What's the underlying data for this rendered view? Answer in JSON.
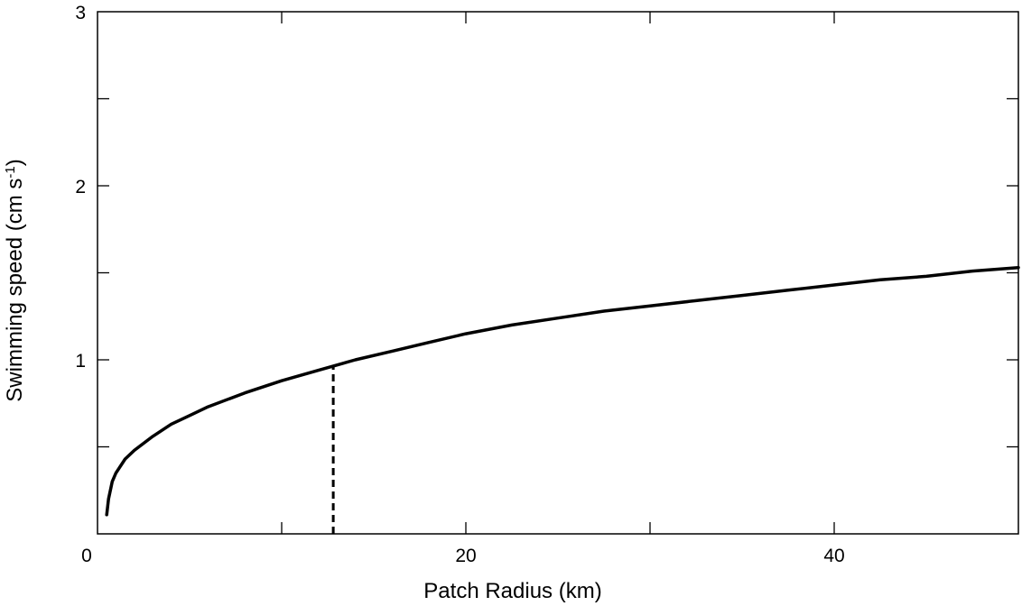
{
  "chart_data": {
    "type": "line",
    "title": "",
    "xlabel": "Patch Radius (km)",
    "ylabel_main": "Swimming speed (cm s",
    "ylabel_sup": "-1",
    "ylabel_close": ")",
    "xlim": [
      0,
      50
    ],
    "ylim": [
      0,
      3
    ],
    "xticks": [
      0,
      20,
      40
    ],
    "xtick_labels": [
      "0",
      "20",
      "40"
    ],
    "xminor_ticks": [
      10,
      30
    ],
    "yticks": [
      1,
      2,
      3
    ],
    "ytick_labels": [
      "1",
      "2",
      "3"
    ],
    "yminor_ticks": [
      0.5,
      1.5,
      2.5
    ],
    "grid": false,
    "series": [
      {
        "style": "solid",
        "color": "#000000",
        "x": [
          0.5,
          0.6,
          0.8,
          1.0,
          1.5,
          2.0,
          3.0,
          4.0,
          5.0,
          6.0,
          8.0,
          10.0,
          12.0,
          14.0,
          16.0,
          18.0,
          20.0,
          22.5,
          25.0,
          27.5,
          30.0,
          32.5,
          35.0,
          37.5,
          40.0,
          42.5,
          45.0,
          47.5,
          50.0
        ],
        "y": [
          0.11,
          0.2,
          0.3,
          0.35,
          0.43,
          0.48,
          0.56,
          0.63,
          0.68,
          0.73,
          0.81,
          0.88,
          0.94,
          1.0,
          1.05,
          1.1,
          1.15,
          1.2,
          1.24,
          1.28,
          1.31,
          1.34,
          1.37,
          1.4,
          1.43,
          1.46,
          1.48,
          1.51,
          1.53
        ]
      }
    ],
    "annotations": [
      {
        "type": "vertical-dashed-line",
        "x": 12.8,
        "y_from": 0,
        "y_to": 0.97,
        "color": "#000000"
      }
    ]
  }
}
